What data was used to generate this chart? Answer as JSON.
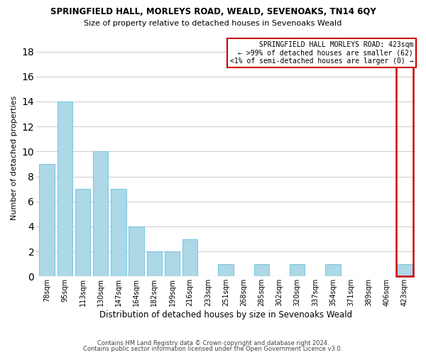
{
  "title": "SPRINGFIELD HALL, MORLEYS ROAD, WEALD, SEVENOAKS, TN14 6QY",
  "subtitle": "Size of property relative to detached houses in Sevenoaks Weald",
  "xlabel": "Distribution of detached houses by size in Sevenoaks Weald",
  "ylabel": "Number of detached properties",
  "bar_labels": [
    "78sqm",
    "95sqm",
    "113sqm",
    "130sqm",
    "147sqm",
    "164sqm",
    "182sqm",
    "199sqm",
    "216sqm",
    "233sqm",
    "251sqm",
    "268sqm",
    "285sqm",
    "302sqm",
    "320sqm",
    "337sqm",
    "354sqm",
    "371sqm",
    "389sqm",
    "406sqm",
    "423sqm"
  ],
  "bar_heights": [
    9,
    14,
    7,
    10,
    7,
    4,
    2,
    2,
    3,
    0,
    1,
    0,
    1,
    0,
    1,
    0,
    1,
    0,
    0,
    0,
    1
  ],
  "bar_color": "#add8e6",
  "bar_edge_color": "#7ec8e3",
  "highlight_bar_index": 20,
  "highlight_bar_edge_color": "#cc0000",
  "ylim": [
    0,
    19
  ],
  "yticks": [
    0,
    2,
    4,
    6,
    8,
    10,
    12,
    14,
    16,
    18
  ],
  "annotation_title": "SPRINGFIELD HALL MORLEYS ROAD: 423sqm",
  "annotation_line1": "← >99% of detached houses are smaller (62)",
  "annotation_line2": "<1% of semi-detached houses are larger (0) →",
  "annotation_box_edge_color": "#cc0000",
  "footer_line1": "Contains HM Land Registry data © Crown copyright and database right 2024.",
  "footer_line2": "Contains public sector information licensed under the Open Government Licence v3.0.",
  "background_color": "#ffffff",
  "grid_color": "#cccccc"
}
